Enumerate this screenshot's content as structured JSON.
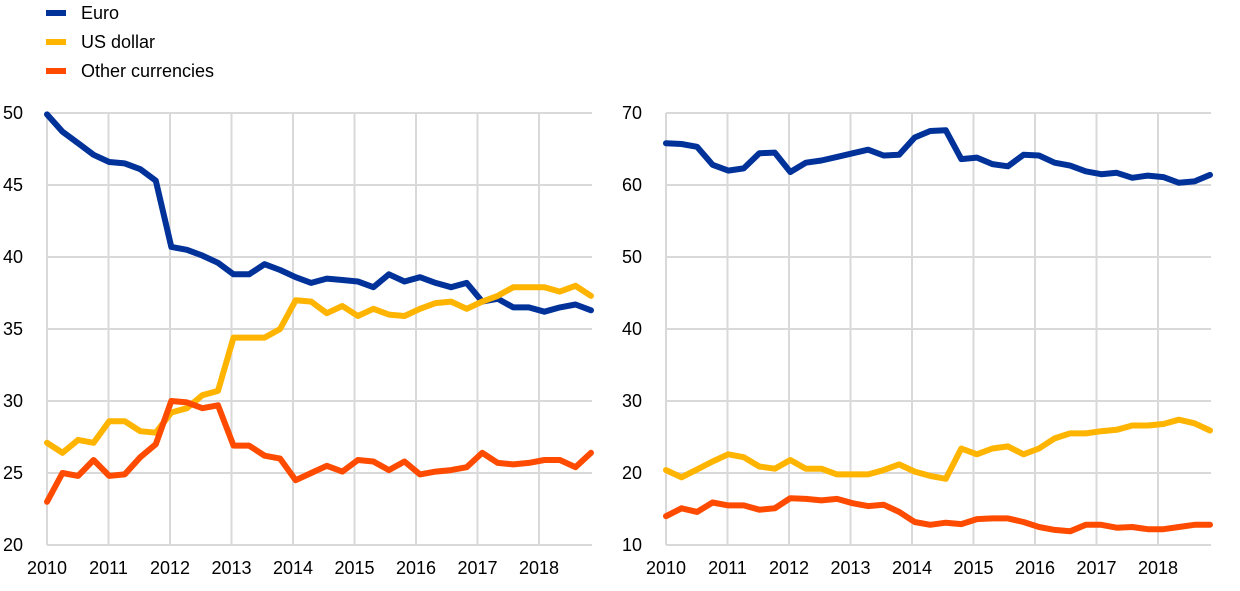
{
  "legend": {
    "items": [
      {
        "label": "Euro",
        "color": "#003299"
      },
      {
        "label": "US dollar",
        "color": "#FFB400"
      },
      {
        "label": "Other currencies",
        "color": "#FF4B00"
      }
    ]
  },
  "chart_data": [
    {
      "type": "line",
      "title": "",
      "xlabel": "",
      "ylabel": "",
      "x_ticks": [
        "2010",
        "2011",
        "2012",
        "2013",
        "2014",
        "2015",
        "2016",
        "2017",
        "2018"
      ],
      "y_ticks": [
        20,
        25,
        30,
        35,
        40,
        45,
        50
      ],
      "ylim": [
        20,
        50
      ],
      "x_start": 2010,
      "x_step": 0.25,
      "grid": true,
      "series": [
        {
          "name": "Euro",
          "color": "#003299",
          "values": [
            49.9,
            48.7,
            47.9,
            47.1,
            46.6,
            46.5,
            46.1,
            45.3,
            40.7,
            40.5,
            40.1,
            39.6,
            38.8,
            38.8,
            39.5,
            39.1,
            38.6,
            38.2,
            38.5,
            38.4,
            38.3,
            37.9,
            38.8,
            38.3,
            38.6,
            38.2,
            37.9,
            38.2,
            36.9,
            37.1,
            36.5,
            36.5,
            36.2,
            36.5,
            36.7,
            36.3
          ]
        },
        {
          "name": "US dollar",
          "color": "#FFB400",
          "values": [
            27.1,
            26.4,
            27.3,
            27.1,
            28.6,
            28.6,
            27.9,
            27.8,
            29.2,
            29.5,
            30.4,
            30.7,
            34.4,
            34.4,
            34.4,
            35.0,
            37.0,
            36.9,
            36.1,
            36.6,
            35.9,
            36.4,
            36.0,
            35.9,
            36.4,
            36.8,
            36.9,
            36.4,
            36.9,
            37.3,
            37.9,
            37.9,
            37.9,
            37.6,
            38.0,
            37.3
          ]
        },
        {
          "name": "Other currencies",
          "color": "#FF4B00",
          "values": [
            23.0,
            25.0,
            24.8,
            25.9,
            24.8,
            24.9,
            26.1,
            27.0,
            30.0,
            29.9,
            29.5,
            29.7,
            26.9,
            26.9,
            26.2,
            26.0,
            24.5,
            25.0,
            25.5,
            25.1,
            25.9,
            25.8,
            25.2,
            25.8,
            24.9,
            25.1,
            25.2,
            25.4,
            26.4,
            25.7,
            25.6,
            25.7,
            25.9,
            25.9,
            25.4,
            26.4
          ]
        }
      ]
    },
    {
      "type": "line",
      "title": "",
      "xlabel": "",
      "ylabel": "",
      "x_ticks": [
        "2010",
        "2011",
        "2012",
        "2013",
        "2014",
        "2015",
        "2016",
        "2017",
        "2018"
      ],
      "y_ticks": [
        10,
        20,
        30,
        40,
        50,
        60,
        70
      ],
      "ylim": [
        10,
        70
      ],
      "x_start": 2010,
      "x_step": 0.25,
      "grid": true,
      "series": [
        {
          "name": "Euro",
          "color": "#003299",
          "values": [
            65.8,
            65.7,
            65.3,
            62.8,
            62.0,
            62.3,
            64.4,
            64.5,
            61.8,
            63.1,
            63.4,
            63.9,
            64.4,
            64.9,
            64.1,
            64.2,
            66.6,
            67.5,
            67.6,
            63.6,
            63.8,
            62.9,
            62.6,
            64.2,
            64.1,
            63.1,
            62.7,
            61.9,
            61.5,
            61.7,
            61.0,
            61.3,
            61.1,
            60.3,
            60.5,
            61.4
          ]
        },
        {
          "name": "US dollar",
          "color": "#FFB400",
          "values": [
            20.4,
            19.4,
            20.5,
            21.6,
            22.6,
            22.2,
            20.9,
            20.6,
            21.8,
            20.6,
            20.6,
            19.8,
            19.8,
            19.8,
            20.4,
            21.2,
            20.2,
            19.6,
            19.2,
            23.4,
            22.6,
            23.4,
            23.7,
            22.6,
            23.4,
            24.8,
            25.5,
            25.5,
            25.8,
            26.0,
            26.6,
            26.6,
            26.8,
            27.4,
            26.9,
            25.9
          ]
        },
        {
          "name": "Other currencies",
          "color": "#FF4B00",
          "values": [
            14.0,
            15.1,
            14.6,
            15.9,
            15.5,
            15.5,
            14.9,
            15.1,
            16.5,
            16.4,
            16.2,
            16.4,
            15.8,
            15.4,
            15.6,
            14.6,
            13.2,
            12.8,
            13.1,
            12.9,
            13.6,
            13.7,
            13.7,
            13.2,
            12.5,
            12.1,
            11.9,
            12.8,
            12.8,
            12.4,
            12.5,
            12.2,
            12.2,
            12.5,
            12.8,
            12.8
          ]
        }
      ]
    }
  ]
}
